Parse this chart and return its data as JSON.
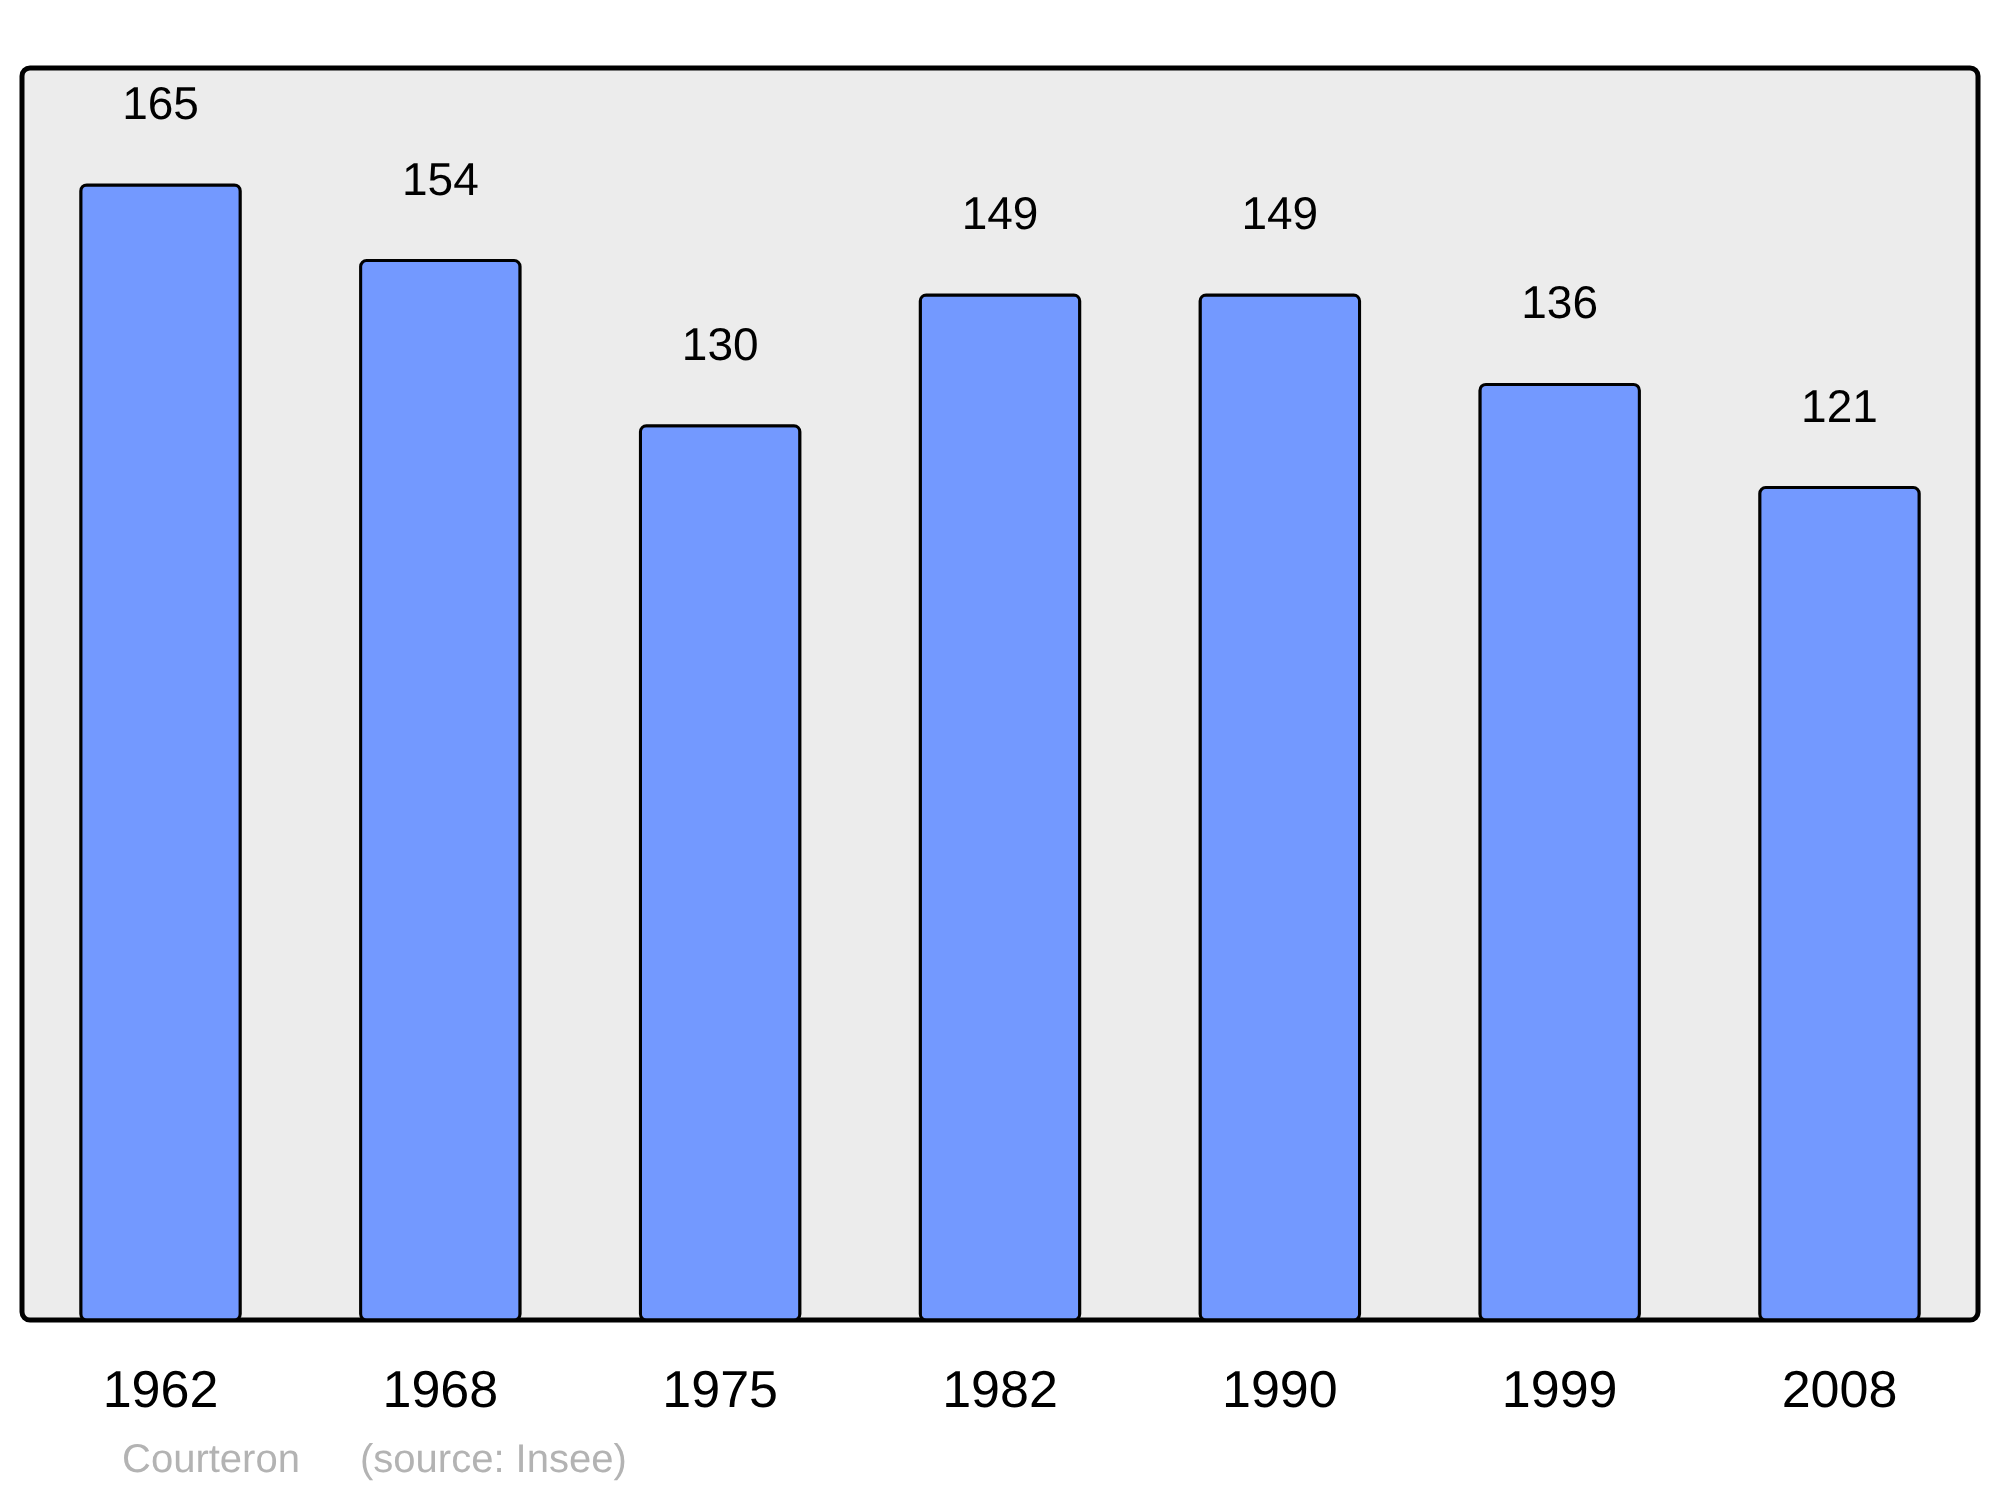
{
  "chart_data": {
    "type": "bar",
    "categories": [
      "1962",
      "1968",
      "1975",
      "1982",
      "1990",
      "1999",
      "2008"
    ],
    "values": [
      165,
      154,
      130,
      149,
      149,
      136,
      121
    ],
    "color": "#7399ff",
    "data_labels": true,
    "annotations": [
      "Courteron",
      "(source: Insee)"
    ]
  }
}
